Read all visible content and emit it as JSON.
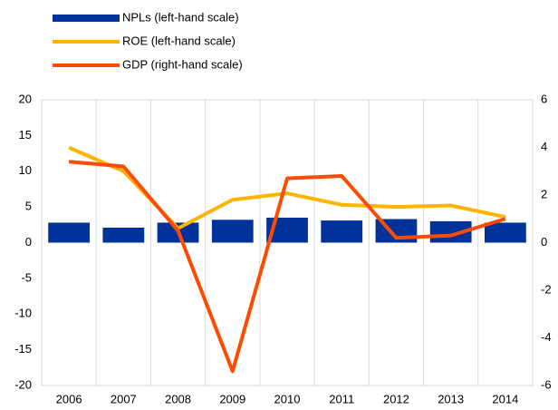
{
  "chart_data": {
    "type": "bar_line",
    "categories": [
      "2006",
      "2007",
      "2008",
      "2009",
      "2010",
      "2011",
      "2012",
      "2013",
      "2014"
    ],
    "series": [
      {
        "name": "NPLs (left-hand scale)",
        "type": "bar",
        "color": "#003299",
        "values": [
          2.8,
          2.1,
          2.8,
          3.2,
          3.5,
          3.1,
          3.3,
          3.0,
          2.8
        ]
      },
      {
        "name": "ROE (left-hand scale)",
        "type": "line",
        "color": "#ffb400",
        "values": [
          13.3,
          10.0,
          2.0,
          6.0,
          6.9,
          5.3,
          5.0,
          5.2,
          3.6
        ]
      },
      {
        "name": "GDP (right-hand scale)",
        "type": "line",
        "axis": "y2",
        "color": "#ff4b00",
        "values": [
          3.4,
          3.2,
          0.5,
          -5.4,
          2.7,
          2.8,
          0.2,
          0.3,
          1.0
        ]
      }
    ],
    "ylim": [
      -20,
      20
    ],
    "yticks": [
      -20,
      -15,
      -10,
      -5,
      0,
      5,
      10,
      15,
      20
    ],
    "y2lim": [
      -6,
      6
    ],
    "y2ticks": [
      -6,
      -4,
      -2,
      0,
      2,
      4,
      6
    ],
    "grid": "x",
    "legend": "top-left"
  }
}
